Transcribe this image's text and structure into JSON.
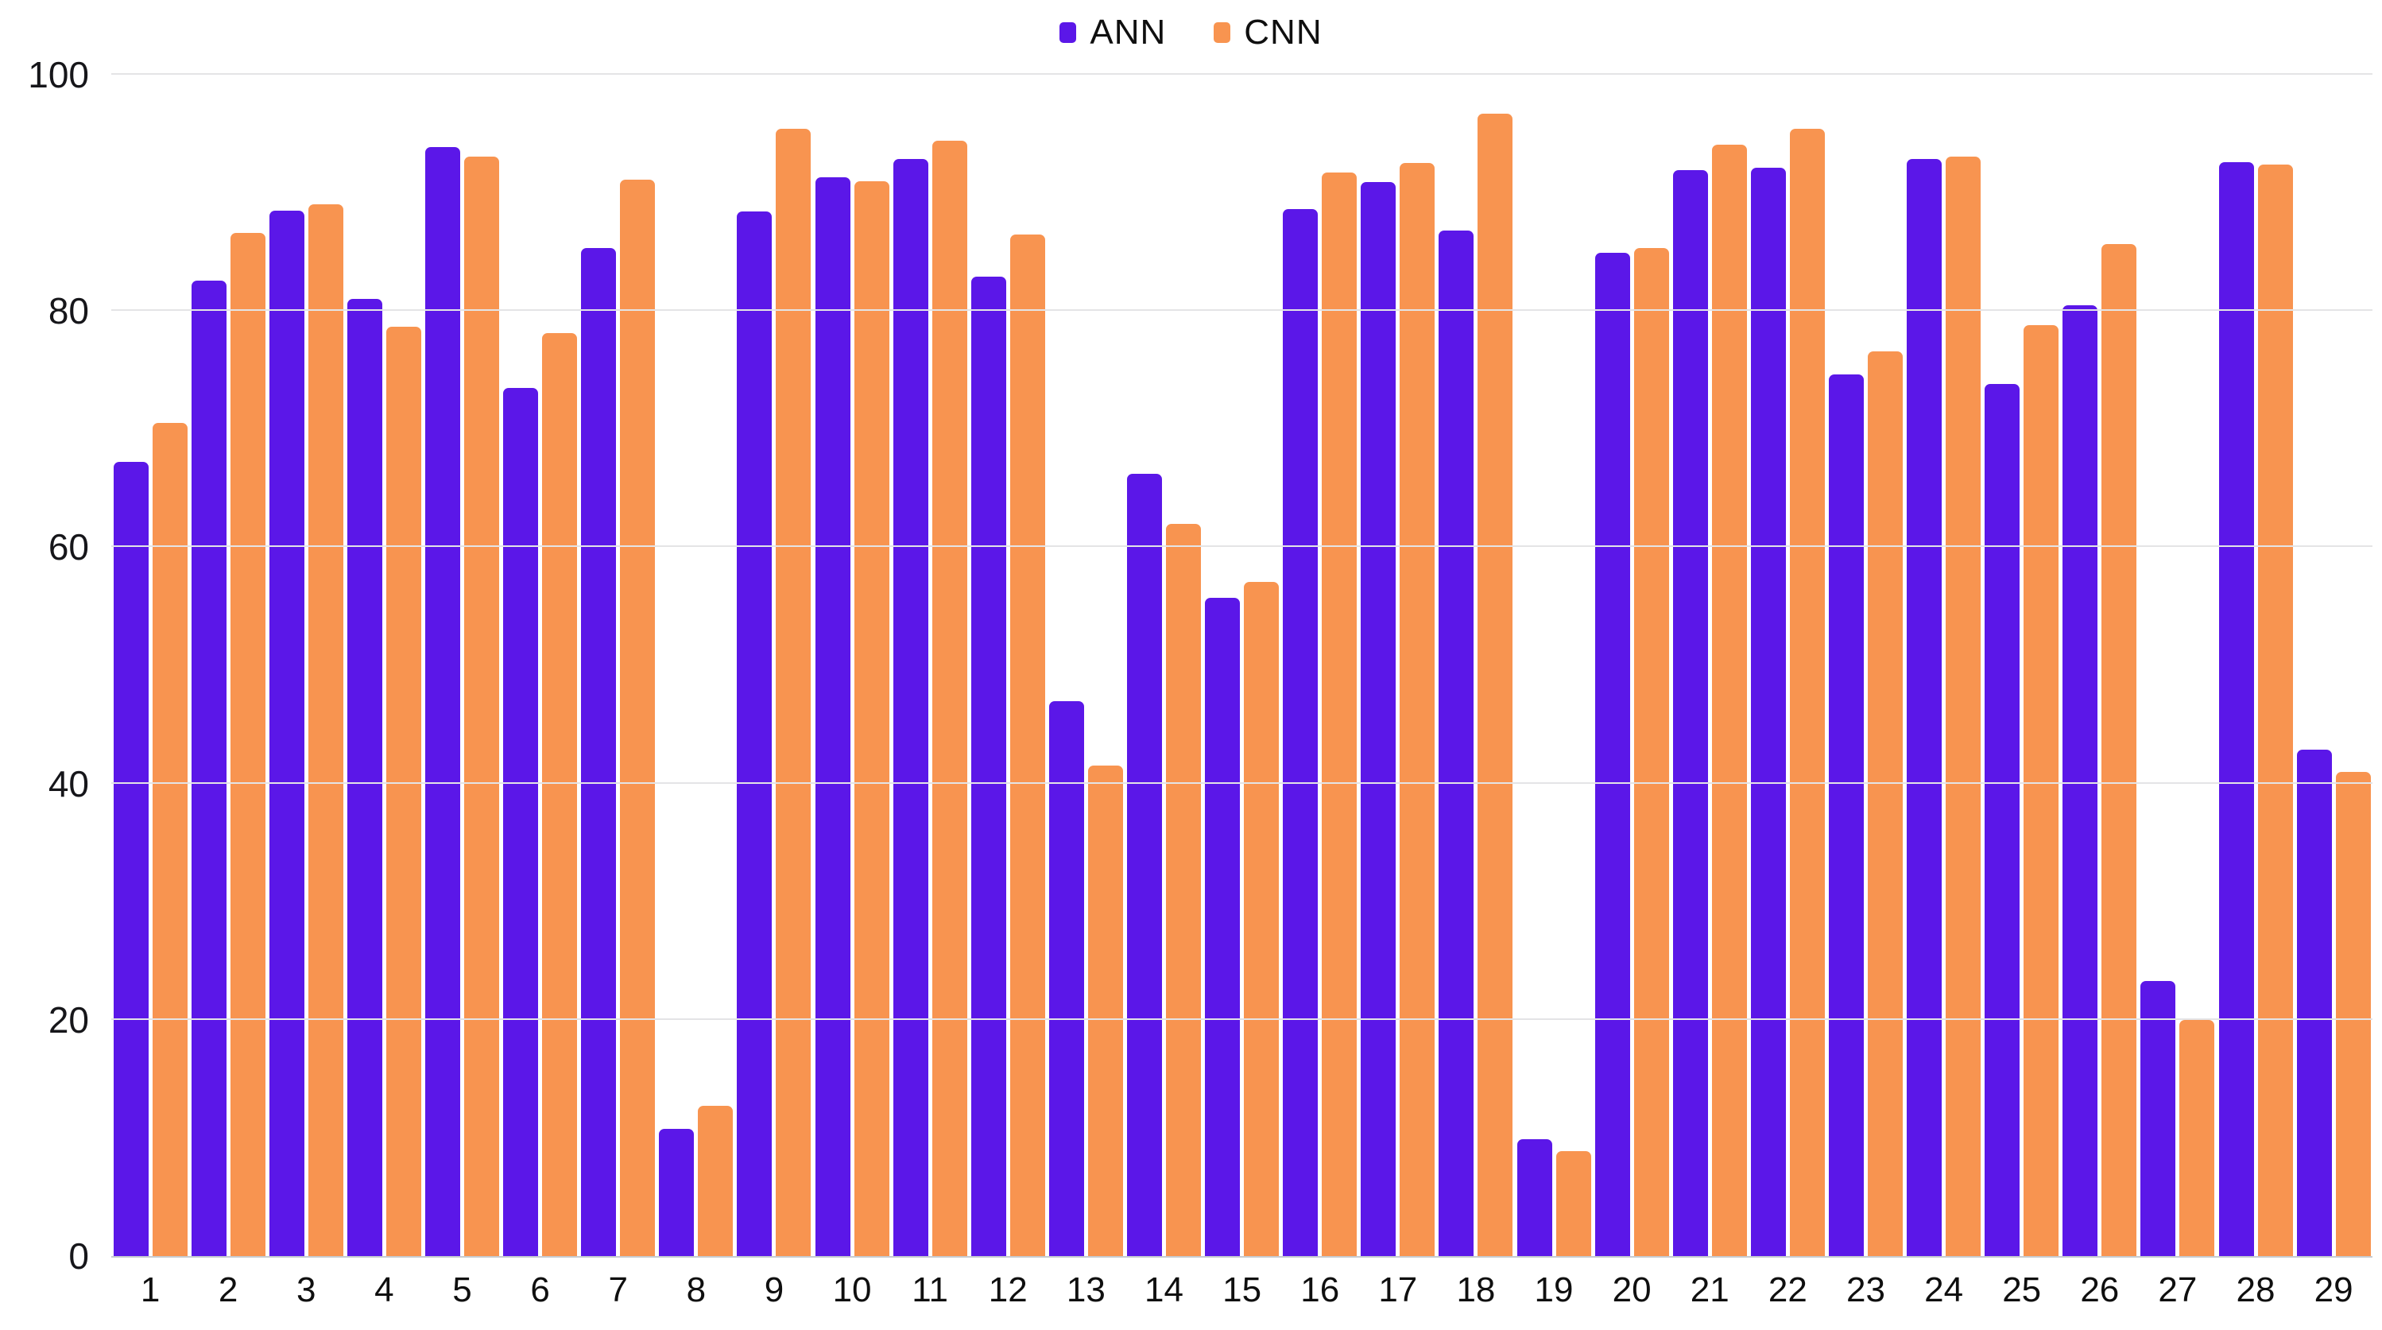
{
  "chart_data": {
    "type": "bar",
    "title": "",
    "xlabel": "",
    "ylabel": "",
    "ylim": [
      0,
      100
    ],
    "yticks": [
      0,
      20,
      40,
      60,
      80,
      100
    ],
    "grid": "horizontal",
    "legend_position": "top-center",
    "categories": [
      "1",
      "2",
      "3",
      "4",
      "5",
      "6",
      "7",
      "8",
      "9",
      "10",
      "11",
      "12",
      "13",
      "14",
      "15",
      "16",
      "17",
      "18",
      "19",
      "20",
      "21",
      "22",
      "23",
      "24",
      "25",
      "26",
      "27",
      "28",
      "29"
    ],
    "series": [
      {
        "name": "ANN",
        "color": "#5b17e8",
        "values": [
          67.2,
          82.6,
          88.5,
          81.0,
          93.9,
          73.5,
          85.3,
          10.8,
          88.4,
          91.3,
          92.9,
          82.9,
          47.0,
          66.2,
          55.7,
          88.6,
          90.9,
          86.8,
          9.9,
          84.9,
          91.9,
          92.1,
          74.6,
          92.9,
          73.8,
          80.5,
          23.3,
          92.6,
          42.9
        ]
      },
      {
        "name": "CNN",
        "color": "#f89450",
        "values": [
          70.5,
          86.6,
          89.0,
          78.7,
          93.1,
          78.1,
          91.1,
          12.7,
          95.4,
          91.0,
          94.4,
          86.5,
          41.5,
          62.0,
          57.1,
          91.7,
          92.5,
          96.7,
          8.9,
          85.3,
          94.1,
          95.4,
          76.6,
          93.1,
          78.8,
          85.7,
          20.0,
          92.4,
          41.0
        ]
      }
    ],
    "colors": {
      "background": "#ffffff",
      "gridline": "#e4e4e6",
      "axis_text": "#16161a"
    }
  },
  "legend": {
    "items": [
      {
        "label": "ANN"
      },
      {
        "label": "CNN"
      }
    ]
  }
}
